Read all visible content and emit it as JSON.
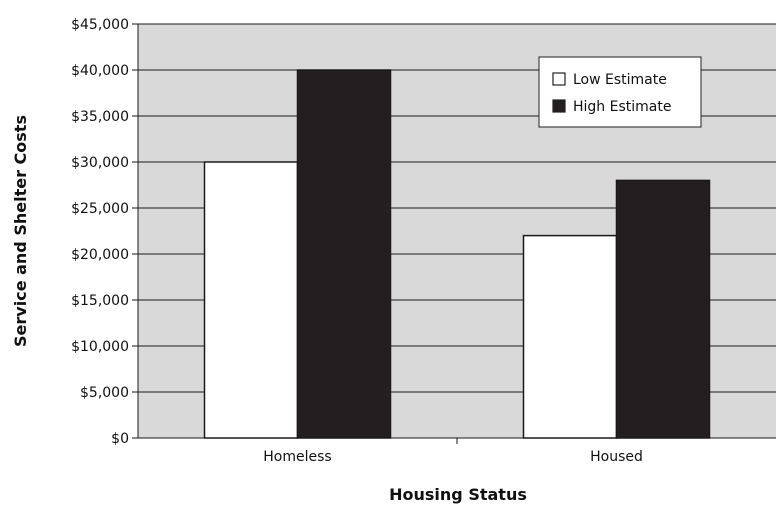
{
  "chart_data": {
    "type": "bar",
    "categories": [
      "Homeless",
      "Housed"
    ],
    "series": [
      {
        "name": "Low Estimate",
        "values": [
          30000,
          22000
        ],
        "color": "#ffffff"
      },
      {
        "name": "High Estimate",
        "values": [
          40000,
          28000
        ],
        "color": "#231f20"
      }
    ],
    "title": "",
    "xlabel": "Housing Status",
    "ylabel": "Service and Shelter Costs",
    "ylim": [
      0,
      45000
    ],
    "y_ticks": [
      {
        "value": 0,
        "label": "$0"
      },
      {
        "value": 5000,
        "label": "$5,000"
      },
      {
        "value": 10000,
        "label": "$10,000"
      },
      {
        "value": 15000,
        "label": "$15,000"
      },
      {
        "value": 20000,
        "label": "$20,000"
      },
      {
        "value": 25000,
        "label": "$25,000"
      },
      {
        "value": 30000,
        "label": "$30,000"
      },
      {
        "value": 35000,
        "label": "$35,000"
      },
      {
        "value": 40000,
        "label": "$40,000"
      },
      {
        "value": 45000,
        "label": "$45,000"
      }
    ],
    "grid": true,
    "legend_position": "top-right",
    "plot_background": "#d9d9d9"
  }
}
